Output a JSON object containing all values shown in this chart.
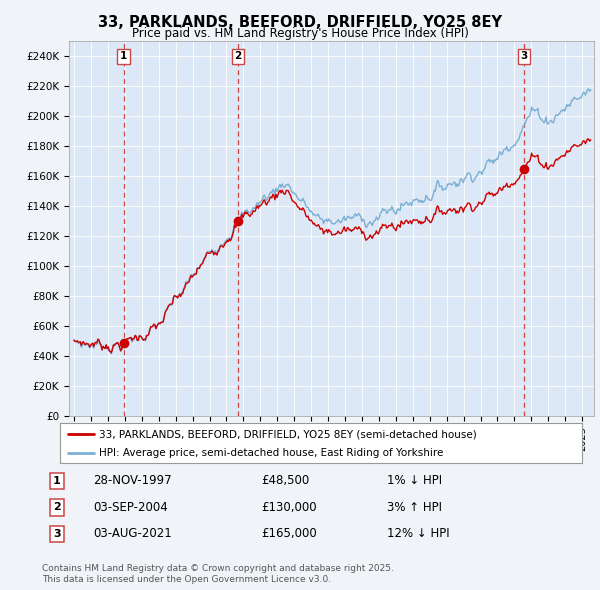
{
  "title": "33, PARKLANDS, BEEFORD, DRIFFIELD, YO25 8EY",
  "subtitle": "Price paid vs. HM Land Registry's House Price Index (HPI)",
  "background_color": "#dce8f5",
  "plot_bg_color": "#dce8f5",
  "outer_bg_color": "#f0f4f8",
  "ylim": [
    0,
    250000
  ],
  "yticks": [
    0,
    20000,
    40000,
    60000,
    80000,
    100000,
    120000,
    140000,
    160000,
    180000,
    200000,
    220000,
    240000
  ],
  "ytick_labels": [
    "£0",
    "£20K",
    "£40K",
    "£60K",
    "£80K",
    "£100K",
    "£120K",
    "£140K",
    "£160K",
    "£180K",
    "£200K",
    "£220K",
    "£240K"
  ],
  "hpi_line_color": "#7bafd4",
  "price_line_color": "#cc0000",
  "sale_marker_color": "#cc0000",
  "dashed_line_color": "#cc4444",
  "sales": [
    {
      "year": 1997.92,
      "price": 48500,
      "label": "1",
      "date_str": "28-NOV-1997",
      "pct": "1%",
      "dir": "↓"
    },
    {
      "year": 2004.67,
      "price": 130000,
      "label": "2",
      "date_str": "03-SEP-2004",
      "pct": "3%",
      "dir": "↑"
    },
    {
      "year": 2021.58,
      "price": 165000,
      "label": "3",
      "date_str": "03-AUG-2021",
      "pct": "12%",
      "dir": "↓"
    }
  ],
  "legend_line1": "33, PARKLANDS, BEEFORD, DRIFFIELD, YO25 8EY (semi-detached house)",
  "legend_line2": "HPI: Average price, semi-detached house, East Riding of Yorkshire",
  "footer1": "Contains HM Land Registry data © Crown copyright and database right 2025.",
  "footer2": "This data is licensed under the Open Government Licence v3.0.",
  "xstart_year": 1995,
  "xend_year": 2025
}
